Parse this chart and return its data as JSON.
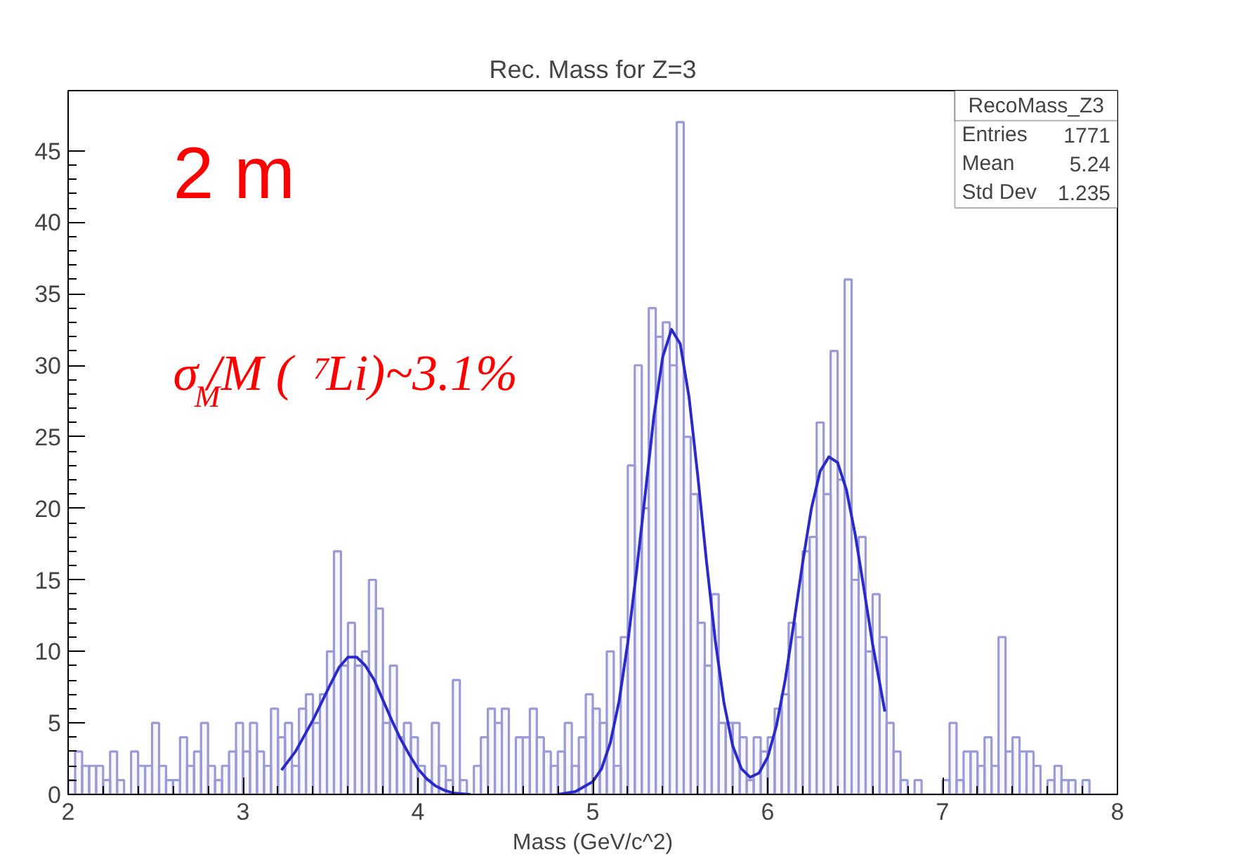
{
  "chart_data": {
    "type": "histogram",
    "title": "Rec. Mass for Z=3",
    "xlabel": "Mass (GeV/c^2)",
    "bins": [
      2.0,
      2.04,
      2.08,
      2.12,
      2.16,
      2.2,
      2.24,
      2.28,
      2.32,
      2.36,
      2.4,
      2.44,
      2.48,
      2.52,
      2.56,
      2.6,
      2.64,
      2.68,
      2.72,
      2.76,
      2.8,
      2.84,
      2.88,
      2.92,
      2.96,
      3.0,
      3.04,
      3.08,
      3.12,
      3.16,
      3.2,
      3.24,
      3.28,
      3.32,
      3.36,
      3.4,
      3.44,
      3.48,
      3.52,
      3.56,
      3.6,
      3.64,
      3.68,
      3.72,
      3.76,
      3.8,
      3.84,
      3.88,
      3.92,
      3.96,
      4.0,
      4.04,
      4.08,
      4.12,
      4.16,
      4.2,
      4.24,
      4.28,
      4.32,
      4.36,
      4.4,
      4.44,
      4.48,
      4.52,
      4.56,
      4.6,
      4.64,
      4.68,
      4.72,
      4.76,
      4.8,
      4.84,
      4.88,
      4.92,
      4.96,
      5.0,
      5.04,
      5.08,
      5.12,
      5.16,
      5.2,
      5.24,
      5.28,
      5.32,
      5.36,
      5.4,
      5.44,
      5.48,
      5.52,
      5.56,
      5.6,
      5.64,
      5.68,
      5.72,
      5.76,
      5.8,
      5.84,
      5.88,
      5.92,
      5.96,
      6.0,
      6.04,
      6.08,
      6.12,
      6.16,
      6.2,
      6.24,
      6.28,
      6.32,
      6.36,
      6.4,
      6.44,
      6.48,
      6.52,
      6.56,
      6.6,
      6.64,
      6.68,
      6.72,
      6.76,
      6.8,
      6.84,
      6.88,
      6.92,
      6.96,
      7.0,
      7.04,
      7.08,
      7.12,
      7.16,
      7.2,
      7.24,
      7.28,
      7.32,
      7.36,
      7.4,
      7.44,
      7.48,
      7.52,
      7.56,
      7.6,
      7.64,
      7.68,
      7.72,
      7.76,
      7.8,
      7.84,
      7.88,
      7.92,
      7.96,
      8.0
    ],
    "series": [
      {
        "color": "#9a9ad8",
        "values": [
          1,
          3,
          2,
          2,
          2,
          1,
          3,
          1,
          0,
          3,
          2,
          2,
          5,
          2,
          1,
          1,
          4,
          2,
          3,
          5,
          2,
          1,
          2,
          3,
          5,
          3,
          5,
          3,
          2,
          6,
          4,
          5,
          2,
          6,
          7,
          5,
          7,
          10,
          17,
          9,
          12,
          9,
          10,
          15,
          13,
          5,
          9,
          4,
          5,
          4,
          2,
          1,
          5,
          2,
          1,
          8,
          1,
          0,
          2,
          4,
          6,
          5,
          6,
          0,
          4,
          4,
          6,
          4,
          3,
          2,
          3,
          5,
          2,
          4,
          7,
          6,
          5,
          10,
          2,
          11,
          23,
          30,
          20,
          34,
          32,
          33,
          30,
          47,
          25,
          21,
          12,
          9,
          14,
          5,
          5,
          5,
          4,
          1,
          4,
          3,
          4,
          6,
          7,
          12,
          11,
          17,
          18,
          26,
          21,
          31,
          22,
          36,
          15,
          18,
          10,
          14,
          11,
          5,
          3,
          1,
          0,
          1,
          0,
          0,
          0,
          1,
          5,
          1,
          3,
          3,
          2,
          4,
          2,
          11,
          3,
          4,
          3,
          3,
          2,
          0,
          1,
          2,
          1,
          1,
          0,
          1,
          0,
          0,
          0,
          0
        ]
      },
      {
        "type": "line",
        "color": "#2a2ac8",
        "x": [
          3.22,
          3.3,
          3.4,
          3.5,
          3.55,
          3.6,
          3.65,
          3.7,
          3.75,
          3.8,
          3.85,
          3.9,
          3.95,
          4.0,
          4.05,
          4.1,
          4.15,
          4.2,
          4.3
        ],
        "values": [
          1.7,
          3.0,
          5.2,
          7.7,
          8.9,
          9.6,
          9.6,
          9.0,
          8.0,
          6.6,
          5.2,
          3.9,
          2.8,
          1.8,
          1.1,
          0.6,
          0.3,
          0.1,
          0.0
        ]
      },
      {
        "type": "line",
        "color": "#2a2ac8",
        "x": [
          4.8,
          4.9,
          5.0,
          5.05,
          5.1,
          5.15,
          5.2,
          5.25,
          5.3,
          5.35,
          5.4,
          5.45,
          5.5,
          5.55,
          5.6,
          5.65,
          5.7,
          5.75,
          5.8,
          5.85,
          5.9,
          5.95,
          6.0,
          6.05,
          6.1,
          6.15,
          6.2,
          6.25,
          6.3,
          6.35,
          6.4,
          6.45,
          6.5,
          6.55,
          6.6,
          6.67
        ],
        "values": [
          0.0,
          0.2,
          0.9,
          1.8,
          3.6,
          6.5,
          10.6,
          15.6,
          21.0,
          26.5,
          30.6,
          32.5,
          31.5,
          27.8,
          22.3,
          16.3,
          10.8,
          6.4,
          3.4,
          1.8,
          1.2,
          1.5,
          2.6,
          4.8,
          8.0,
          12.0,
          16.2,
          20.0,
          22.6,
          23.6,
          23.2,
          21.3,
          18.2,
          14.4,
          10.5,
          5.8
        ]
      }
    ],
    "xlim": [
      2,
      8
    ],
    "xticks": [
      2,
      3,
      4,
      5,
      6,
      7,
      8
    ],
    "ylim": [
      0,
      49.2
    ],
    "yticks": [
      0,
      5,
      10,
      15,
      20,
      25,
      30,
      35,
      40,
      45
    ],
    "annotations": [
      "RecoMass_Z3",
      "Entries 1771",
      "Mean 5.24",
      "Std Dev 1.235",
      "2 m",
      "σ$_{M}$/M ( $^{7}$Li)~3.1%"
    ]
  }
}
